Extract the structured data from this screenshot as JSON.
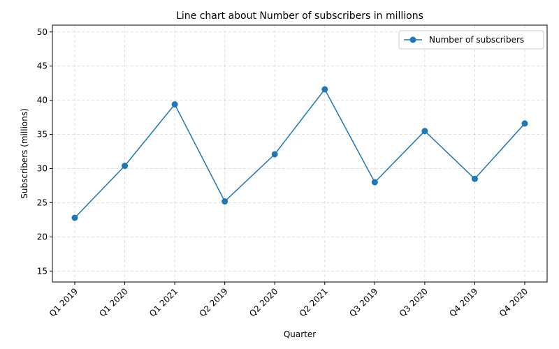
{
  "chart_data": {
    "type": "line",
    "title": "Line chart about Number of subscribers in millions",
    "xlabel": "Quarter",
    "ylabel": "Subscribers (millions)",
    "categories": [
      "Q1 2019",
      "Q1 2020",
      "Q1 2021",
      "Q2 2019",
      "Q2 2020",
      "Q2 2021",
      "Q3 2019",
      "Q3 2020",
      "Q4 2019",
      "Q4 2020"
    ],
    "series": [
      {
        "name": "Number of subscribers",
        "values": [
          22.8,
          30.4,
          39.4,
          25.2,
          32.1,
          41.6,
          28.0,
          35.5,
          28.5,
          36.6
        ],
        "color": "#1f77b4",
        "marker": "circle"
      }
    ],
    "ylim": [
      13.4,
      51
    ],
    "yticks": [
      15,
      20,
      25,
      30,
      35,
      40,
      45,
      50
    ],
    "xtick_rotation": 45,
    "grid": true,
    "grid_style": "dashed",
    "legend_position": "top-right"
  }
}
